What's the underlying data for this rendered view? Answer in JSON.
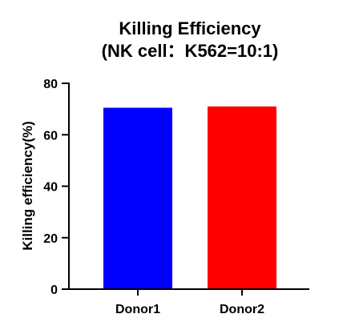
{
  "chart_data": {
    "type": "bar",
    "title_lines": [
      "Killing Efficiency",
      "(NK cell：K562=10:1)"
    ],
    "xlabel": "",
    "ylabel": "Killing efficiency(%)",
    "categories": [
      "Donor1",
      "Donor2"
    ],
    "values": [
      70.5,
      71
    ],
    "colors": [
      "#0000ff",
      "#ff0000"
    ],
    "ylim": [
      0,
      80
    ],
    "yticks": [
      0,
      20,
      40,
      60,
      80
    ],
    "grid": false,
    "legend": "none"
  }
}
